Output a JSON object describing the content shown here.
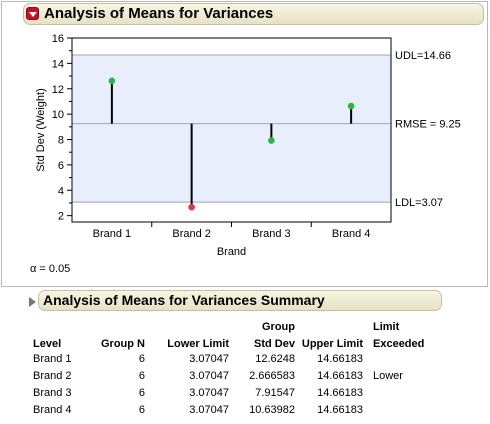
{
  "report": {
    "title": "Analysis of Means for Variances",
    "alpha_text": "α = 0.05"
  },
  "chart_data": {
    "type": "scatter",
    "title": "",
    "xlabel": "Brand",
    "ylabel": "Std Dev (Weight)",
    "categories": [
      "Brand 1",
      "Brand 2",
      "Brand 3",
      "Brand 4"
    ],
    "values": [
      12.6248,
      2.666583,
      7.91547,
      10.63982
    ],
    "center_line": 9.25,
    "udl": 14.66,
    "ldl": 3.07,
    "center_label": "RMSE = 9.25",
    "udl_label": "UDL=14.66",
    "ldl_label": "LDL=3.07",
    "ylim": [
      1.5,
      16
    ],
    "yticks": [
      2,
      4,
      6,
      8,
      10,
      12,
      14,
      16
    ],
    "colors": {
      "within": "#2db34a",
      "exceeded": "#e8334a",
      "band": "#e8eefc",
      "limit_line": "#a0a4b8"
    }
  },
  "summary": {
    "title": "Analysis of Means for Variances Summary",
    "headers_top": [
      "",
      "",
      "",
      "Group",
      "",
      "Limit"
    ],
    "headers": [
      "Level",
      "Group N",
      "Lower Limit",
      "Std Dev",
      "Upper Limit",
      "Exceeded"
    ],
    "rows": [
      [
        "Brand 1",
        "6",
        "3.07047",
        "12.6248",
        "14.66183",
        ""
      ],
      [
        "Brand 2",
        "6",
        "3.07047",
        "2.666583",
        "14.66183",
        "Lower"
      ],
      [
        "Brand 3",
        "6",
        "3.07047",
        "7.91547",
        "14.66183",
        ""
      ],
      [
        "Brand 4",
        "6",
        "3.07047",
        "10.63982",
        "14.66183",
        ""
      ]
    ]
  }
}
